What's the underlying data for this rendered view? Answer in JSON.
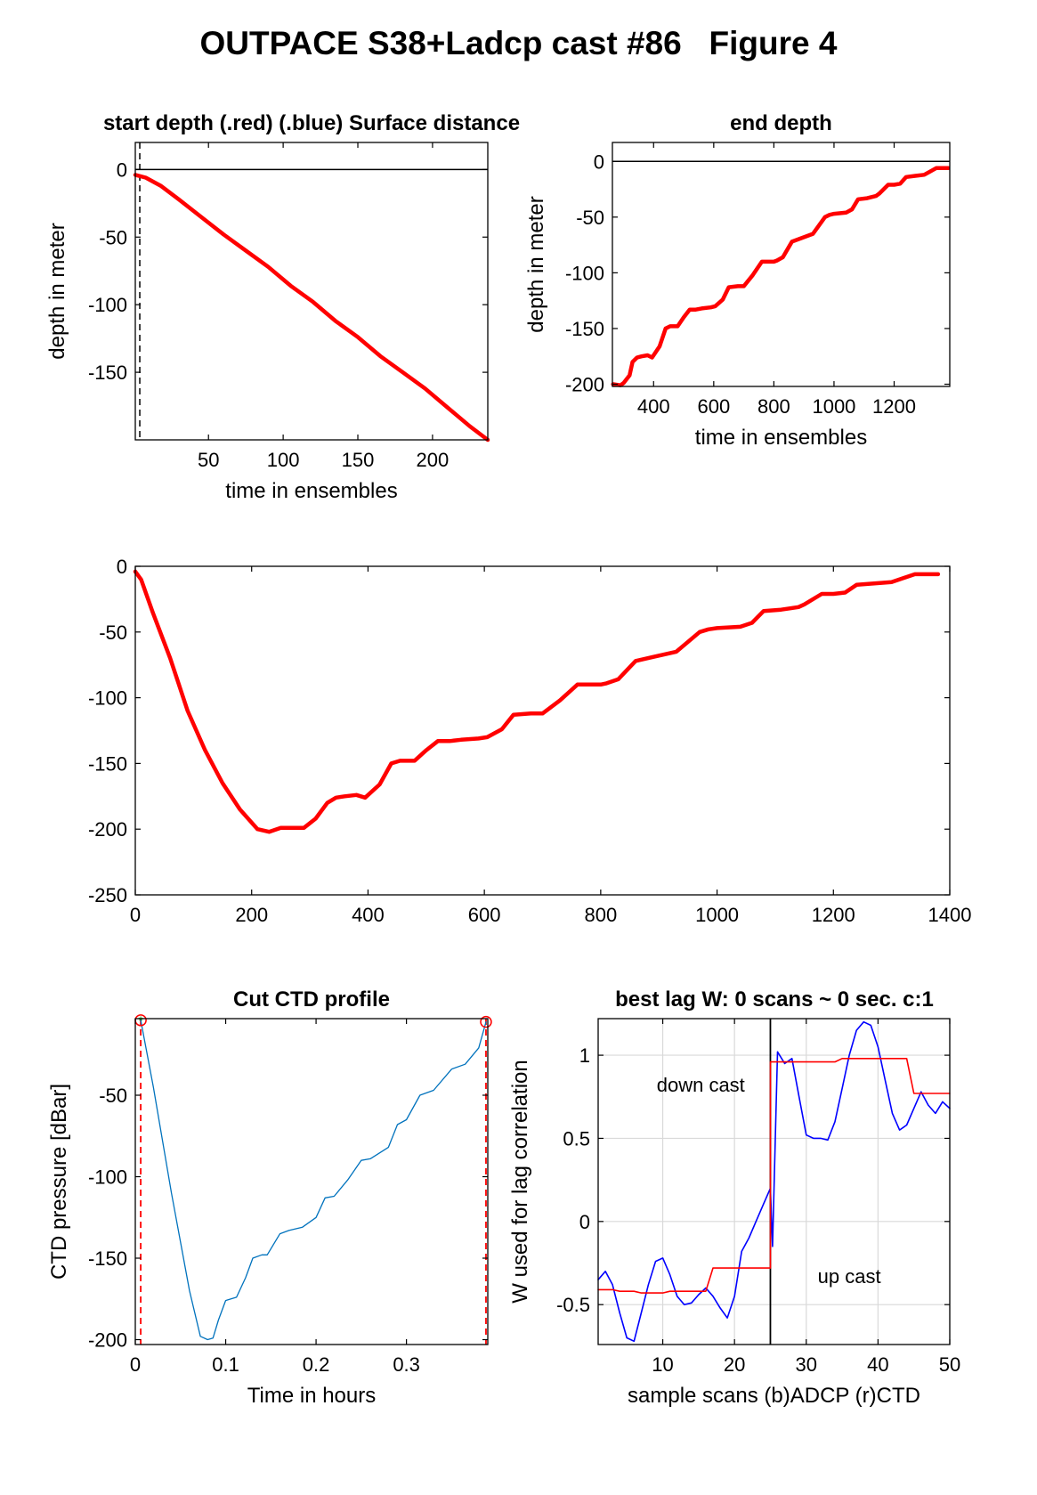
{
  "figure_title": "OUTPACE S38+Ladcp cast #86   Figure 4",
  "chart_data": [
    {
      "id": "start",
      "type": "line",
      "title": "start depth (.red) (.blue) Surface distance",
      "xlabel": "time in ensembles",
      "ylabel": "depth in meter",
      "xlim": [
        1,
        237
      ],
      "ylim": [
        -200,
        20
      ],
      "xticks": [
        50,
        100,
        150,
        200
      ],
      "yticks": [
        0,
        -50,
        -100,
        -150
      ],
      "hline": 0,
      "vline_dashed": 4,
      "series": [
        {
          "color": "#ff0000",
          "x": [
            1,
            8,
            18,
            30,
            45,
            60,
            75,
            90,
            105,
            120,
            135,
            150,
            165,
            180,
            195,
            210,
            225,
            237
          ],
          "y": [
            -4,
            -6,
            -12,
            -22,
            -35,
            -48,
            -60,
            -72,
            -86,
            -98,
            -112,
            -124,
            -138,
            -150,
            -162,
            -176,
            -190,
            -200
          ]
        }
      ]
    },
    {
      "id": "end",
      "type": "line",
      "title": "end depth",
      "xlabel": "time in ensembles",
      "ylabel": "depth in meter",
      "xlim": [
        263,
        1385
      ],
      "ylim": [
        -202,
        17
      ],
      "xticks": [
        400,
        600,
        800,
        1000,
        1200
      ],
      "yticks": [
        0,
        -50,
        -100,
        -150,
        -200
      ],
      "hline": 0,
      "series": [
        {
          "color": "#ff0000",
          "x": [
            265,
            290,
            300,
            320,
            330,
            345,
            360,
            380,
            395,
            420,
            440,
            455,
            480,
            500,
            520,
            540,
            560,
            590,
            605,
            630,
            650,
            680,
            700,
            730,
            760,
            785,
            800,
            810,
            830,
            860,
            890,
            930,
            970,
            985,
            1000,
            1040,
            1060,
            1080,
            1110,
            1140,
            1150,
            1180,
            1200,
            1220,
            1240,
            1270,
            1300,
            1340,
            1380
          ],
          "y": [
            -200,
            -201,
            -199,
            -192,
            -180,
            -176,
            -175,
            -174,
            -176,
            -166,
            -150,
            -148,
            -148,
            -140,
            -133,
            -133,
            -132,
            -131,
            -130,
            -124,
            -113,
            -112,
            -112,
            -102,
            -90,
            -90,
            -90,
            -89,
            -86,
            -72,
            -69,
            -65,
            -50,
            -48,
            -47,
            -46,
            -43,
            -34,
            -33,
            -31,
            -29,
            -21,
            -21,
            -20,
            -14,
            -13,
            -12,
            -6,
            -6
          ]
        }
      ]
    },
    {
      "id": "full",
      "type": "line",
      "title": "",
      "xlabel": "",
      "ylabel": "",
      "xlim": [
        0,
        1400
      ],
      "ylim": [
        -250,
        0
      ],
      "xticks": [
        0,
        200,
        400,
        600,
        800,
        1000,
        1200,
        1400
      ],
      "yticks": [
        0,
        -50,
        -100,
        -150,
        -200,
        -250
      ],
      "series": [
        {
          "color": "#ff0000",
          "x": [
            0,
            10,
            30,
            60,
            90,
            120,
            150,
            180,
            210,
            230,
            250,
            270,
            290,
            310,
            330,
            345,
            360,
            380,
            395,
            420,
            440,
            455,
            480,
            500,
            520,
            540,
            560,
            590,
            605,
            630,
            650,
            680,
            700,
            730,
            760,
            785,
            800,
            810,
            830,
            860,
            890,
            930,
            970,
            985,
            1000,
            1040,
            1060,
            1080,
            1110,
            1140,
            1150,
            1180,
            1200,
            1220,
            1240,
            1270,
            1300,
            1340,
            1380
          ],
          "y": [
            -4,
            -10,
            -35,
            -70,
            -110,
            -140,
            -165,
            -185,
            -200,
            -202,
            -199,
            -199,
            -199,
            -192,
            -180,
            -176,
            -175,
            -174,
            -176,
            -166,
            -150,
            -148,
            -148,
            -140,
            -133,
            -133,
            -132,
            -131,
            -130,
            -124,
            -113,
            -112,
            -112,
            -102,
            -90,
            -90,
            -90,
            -89,
            -86,
            -72,
            -69,
            -65,
            -50,
            -48,
            -47,
            -46,
            -43,
            -34,
            -33,
            -31,
            -29,
            -21,
            -21,
            -20,
            -14,
            -13,
            -12,
            -6,
            -6
          ]
        }
      ]
    },
    {
      "id": "ctd",
      "type": "line",
      "title": "Cut CTD profile",
      "xlabel": "Time in hours",
      "ylabel": "CTD pressure [dBar]",
      "xlim": [
        0,
        0.39
      ],
      "ylim": [
        -203,
        -3
      ],
      "xticks": [
        0,
        0.1,
        0.2,
        0.3
      ],
      "yticks": [
        -50,
        -100,
        -150,
        -200
      ],
      "tick_labels": {
        "x": [
          "0",
          "0.1",
          "0.2",
          "0.3"
        ]
      },
      "cut_lines": [
        0.006,
        0.388
      ],
      "series": [
        {
          "color": "#0072bd",
          "x": [
            0.006,
            0.02,
            0.04,
            0.06,
            0.072,
            0.08,
            0.086,
            0.092,
            0.1,
            0.112,
            0.122,
            0.13,
            0.14,
            0.146,
            0.16,
            0.17,
            0.185,
            0.2,
            0.21,
            0.22,
            0.235,
            0.25,
            0.26,
            0.28,
            0.29,
            0.3,
            0.315,
            0.33,
            0.35,
            0.365,
            0.38,
            0.388
          ],
          "y": [
            -4,
            -45,
            -110,
            -170,
            -198,
            -200,
            -199,
            -188,
            -176,
            -174,
            -162,
            -150,
            -148,
            -148,
            -135,
            -133,
            -131,
            -125,
            -113,
            -112,
            -102,
            -90,
            -89,
            -82,
            -68,
            -65,
            -50,
            -47,
            -34,
            -31,
            -21,
            -5
          ]
        }
      ]
    },
    {
      "id": "lag",
      "type": "line",
      "title": "best lag W: 0 scans ~ 0 sec.  c:1",
      "xlabel": "sample scans (b)ADCP (r)CTD",
      "ylabel": "W used for lag correlation",
      "xlim": [
        1,
        50
      ],
      "ylim": [
        -0.74,
        1.22
      ],
      "xticks": [
        10,
        20,
        30,
        40,
        50
      ],
      "yticks": [
        1,
        0.5,
        0,
        -0.5
      ],
      "grid": true,
      "vline": 25,
      "annotations": [
        "down cast",
        "up cast"
      ],
      "series": [
        {
          "name": "ADCP",
          "color": "#0000ff",
          "x": [
            1,
            2,
            3,
            4,
            5,
            6,
            7,
            8,
            9,
            10,
            11,
            12,
            13,
            14,
            15,
            16,
            17,
            18,
            19,
            20,
            21,
            22,
            23,
            24,
            25,
            25.3,
            26,
            27,
            28,
            29,
            30,
            31,
            32,
            33,
            34,
            35,
            36,
            37,
            38,
            39,
            40,
            41,
            42,
            43,
            44,
            45,
            46,
            47,
            48,
            49,
            50
          ],
          "y": [
            -0.35,
            -0.3,
            -0.38,
            -0.55,
            -0.7,
            -0.72,
            -0.55,
            -0.38,
            -0.24,
            -0.22,
            -0.32,
            -0.45,
            -0.5,
            -0.49,
            -0.44,
            -0.4,
            -0.45,
            -0.52,
            -0.58,
            -0.45,
            -0.18,
            -0.1,
            0.0,
            0.1,
            0.2,
            -0.15,
            1.02,
            0.95,
            0.98,
            0.75,
            0.52,
            0.5,
            0.5,
            0.49,
            0.6,
            0.8,
            1.0,
            1.15,
            1.2,
            1.18,
            1.05,
            0.85,
            0.65,
            0.55,
            0.58,
            0.68,
            0.78,
            0.7,
            0.65,
            0.72,
            0.68
          ]
        },
        {
          "name": "CTD",
          "color": "#ff0000",
          "x": [
            1,
            3,
            4,
            6,
            7,
            10,
            11,
            16,
            17,
            25,
            25,
            34,
            35,
            44,
            45,
            50
          ],
          "y": [
            -0.41,
            -0.41,
            -0.42,
            -0.42,
            -0.43,
            -0.43,
            -0.42,
            -0.42,
            -0.28,
            -0.28,
            0.96,
            0.96,
            0.98,
            0.98,
            0.77,
            0.77
          ]
        }
      ]
    }
  ]
}
